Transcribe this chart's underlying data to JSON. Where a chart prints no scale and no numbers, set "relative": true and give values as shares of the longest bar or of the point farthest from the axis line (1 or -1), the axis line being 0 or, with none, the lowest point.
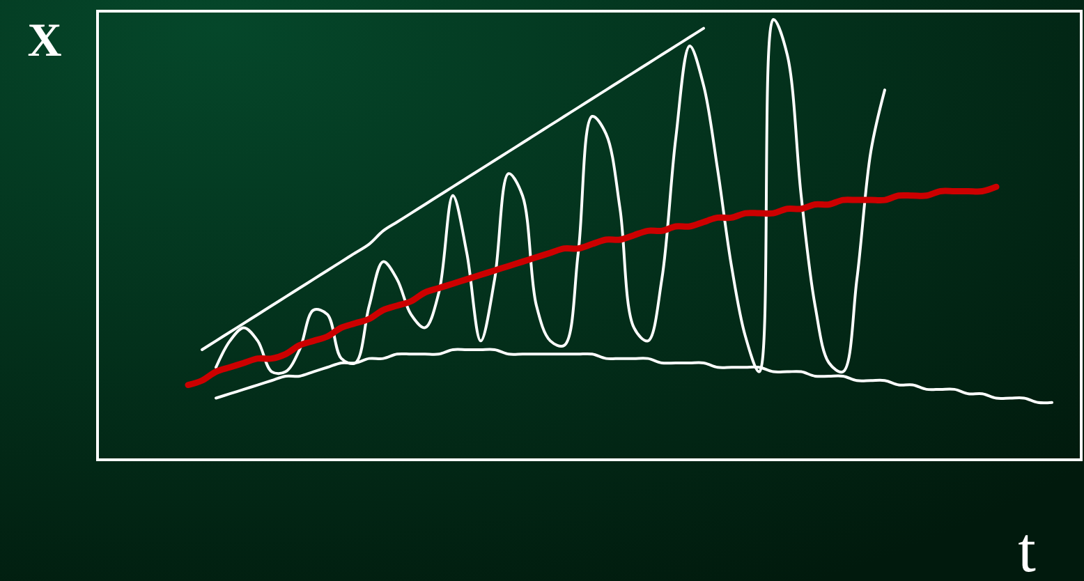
{
  "chart_data": {
    "type": "line",
    "relative": true,
    "xlabel": "t",
    "ylabel": "X",
    "grid": false,
    "line_style": "solid",
    "marker": "none",
    "categories": [
      null,
      null,
      null,
      null,
      null,
      null,
      null,
      null,
      null,
      null,
      null,
      null,
      null,
      null,
      null,
      null,
      null,
      null,
      null,
      null,
      null,
      null,
      null,
      null,
      null,
      null,
      null,
      null,
      null,
      null,
      null,
      null,
      null,
      null,
      null,
      null,
      null,
      null,
      null,
      null,
      null,
      null,
      null,
      null,
      null,
      null,
      null,
      null,
      null,
      null,
      null,
      null,
      null,
      null,
      null,
      null,
      null,
      null,
      null,
      null,
      null,
      null,
      null,
      null,
      null,
      null,
      null,
      null,
      null,
      null
    ],
    "series": [
      {
        "color": "#ffffff",
        "values": [
          null,
          null,
          null,
          null,
          null,
          null,
          null,
          0.25,
          0.27,
          0.29,
          0.31,
          0.33,
          0.35,
          0.37,
          0.39,
          0.41,
          0.43,
          0.45,
          0.47,
          0.49,
          0.52,
          0.54,
          0.56,
          0.58,
          0.6,
          0.62,
          0.64,
          0.66,
          0.68,
          0.7,
          0.72,
          0.74,
          0.76,
          0.78,
          0.8,
          0.82,
          0.84,
          0.86,
          0.88,
          0.9,
          0.92,
          0.94,
          0.96,
          0.98,
          null,
          null,
          null,
          null,
          null,
          null,
          null,
          null,
          null,
          null,
          null,
          null,
          null,
          null,
          null,
          null,
          null,
          null,
          null,
          null,
          null,
          null,
          null,
          null,
          null,
          null
        ]
      },
      {
        "color": "#ffffff",
        "values": [
          null,
          null,
          null,
          null,
          null,
          null,
          null,
          null,
          0.14,
          0.15,
          0.16,
          0.17,
          0.18,
          0.19,
          0.19,
          0.2,
          0.21,
          0.22,
          0.22,
          0.23,
          0.23,
          0.24,
          0.24,
          0.24,
          0.24,
          0.25,
          0.25,
          0.25,
          0.25,
          0.24,
          0.24,
          0.24,
          0.24,
          0.24,
          0.24,
          0.24,
          0.23,
          0.23,
          0.23,
          0.23,
          0.22,
          0.22,
          0.22,
          0.22,
          0.21,
          0.21,
          0.21,
          0.21,
          0.2,
          0.2,
          0.2,
          0.19,
          0.19,
          0.19,
          0.18,
          0.18,
          0.18,
          0.17,
          0.17,
          0.16,
          0.16,
          0.16,
          0.15,
          0.15,
          0.14,
          0.14,
          0.14,
          0.13,
          0.13,
          null
        ]
      },
      {
        "color": "#ffffff",
        "values": [
          null,
          null,
          null,
          null,
          null,
          null,
          null,
          null,
          0.21,
          0.27,
          0.3,
          0.27,
          0.2,
          0.2,
          0.25,
          0.34,
          0.33,
          0.23,
          0.22,
          0.35,
          0.45,
          0.41,
          0.33,
          0.3,
          0.38,
          0.6,
          0.47,
          0.27,
          0.41,
          0.65,
          0.6,
          0.35,
          0.27,
          0.26,
          0.47,
          0.78,
          0.74,
          0.57,
          0.3,
          0.27,
          0.41,
          0.73,
          0.94,
          0.85,
          0.66,
          0.44,
          0.28,
          0.2,
          1.0,
          0.92,
          0.6,
          0.35,
          0.22,
          0.2,
          0.41,
          0.7,
          0.84,
          null,
          null,
          null,
          null,
          null,
          null,
          null,
          null,
          null,
          null,
          null,
          null,
          null
        ]
      },
      {
        "color": "#cc0000",
        "values": [
          null,
          null,
          null,
          null,
          null,
          null,
          0.17,
          0.18,
          0.2,
          0.21,
          0.22,
          0.23,
          0.23,
          0.24,
          0.26,
          0.27,
          0.28,
          0.3,
          0.31,
          0.32,
          0.34,
          0.35,
          0.36,
          0.38,
          0.39,
          0.4,
          0.41,
          0.42,
          0.43,
          0.44,
          0.45,
          0.46,
          0.47,
          0.48,
          0.48,
          0.49,
          0.5,
          0.5,
          0.51,
          0.52,
          0.52,
          0.53,
          0.53,
          0.54,
          0.55,
          0.55,
          0.56,
          0.56,
          0.56,
          0.57,
          0.57,
          0.58,
          0.58,
          0.59,
          0.59,
          0.59,
          0.59,
          0.6,
          0.6,
          0.6,
          0.61,
          0.61,
          0.61,
          0.61,
          0.62,
          null,
          null,
          null,
          null,
          null
        ]
      }
    ]
  }
}
